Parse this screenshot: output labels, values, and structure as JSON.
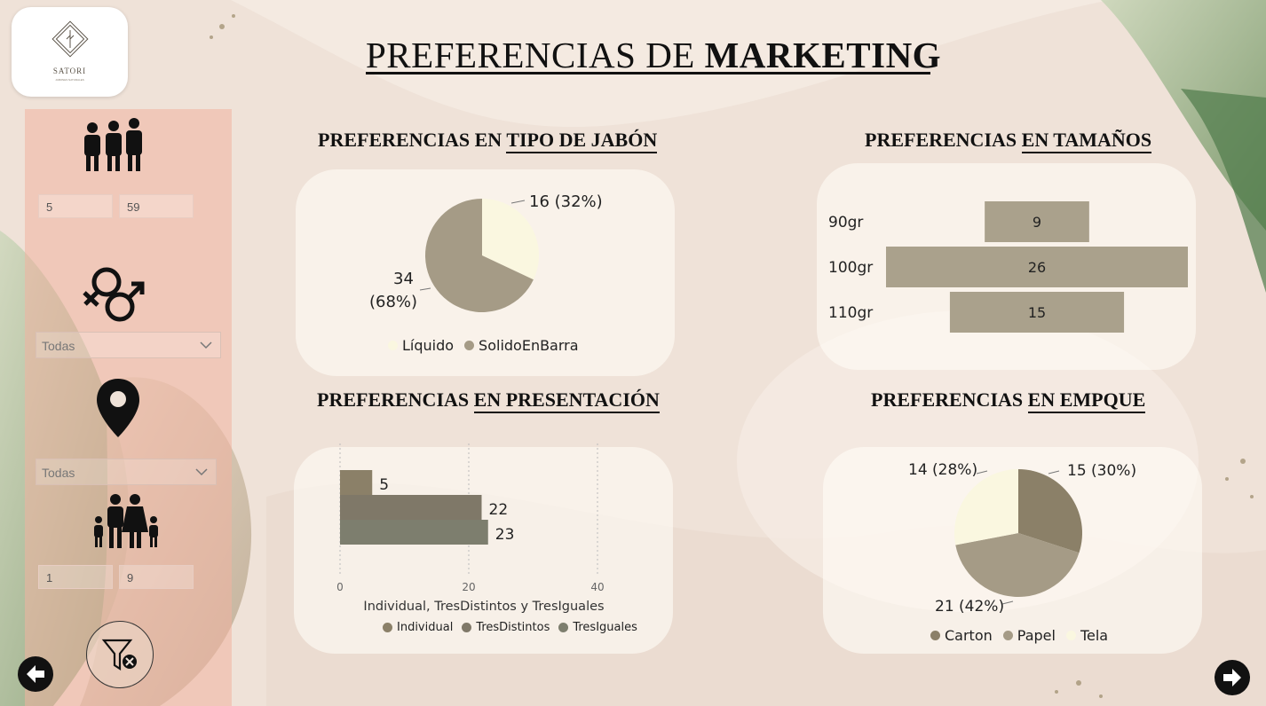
{
  "header": {
    "title_regular": "PREFERENCIAS DE ",
    "title_bold": "MARKETING",
    "logo_text": "SATORI",
    "logo_subtext": "JABONES NATURALES"
  },
  "sidebar": {
    "age_icon": "people-group-icon",
    "age_min": "5",
    "age_max": "59",
    "gender_icon": "gender-symbol-icon",
    "gender_value": "Todas",
    "location_icon": "map-pin-icon",
    "location_value": "Todas",
    "family_icon": "family-icon",
    "family_min": "1",
    "family_max": "9",
    "clear_filters_icon": "filter-clear-icon"
  },
  "navigation": {
    "back_icon": "arrow-left-icon",
    "next_icon": "arrow-right-icon"
  },
  "sections": {
    "soap_type": {
      "title_plain": "PREFERENCIAS EN ",
      "title_underlined": "TIPO DE JABÓN"
    },
    "sizes": {
      "title_plain": "PREFERENCIAS ",
      "title_underlined": "EN TAMAÑOS"
    },
    "presentation": {
      "title_plain": "PREFERENCIAS ",
      "title_underlined": "EN PRESENTACIÓN"
    },
    "packaging": {
      "title_plain": "PREFERENCIAS ",
      "title_underlined": "EN EMPQUE"
    }
  },
  "colors": {
    "pie_light": "#faf7e0",
    "pie_tan": "#a59b86",
    "pie_dark": "#8b8068",
    "bar_tan": "#aaa18c",
    "bar_individual": "#8b8068",
    "bar_tresdistintos": "#7f7868",
    "bar_tresiguales": "#7d7e6e"
  },
  "chart_data": [
    {
      "id": "soap_type",
      "type": "pie",
      "slices": [
        {
          "name": "Líquido",
          "value": 16,
          "label": "16 (32%)"
        },
        {
          "name": "SolidoEnBarra",
          "value": 34,
          "label_line1": "34",
          "label_line2": "(68%)"
        }
      ],
      "legend": [
        "Líquido",
        "SolidoEnBarra"
      ]
    },
    {
      "id": "sizes",
      "type": "bar",
      "orientation": "horizontal-centered",
      "categories": [
        "90gr",
        "100gr",
        "110gr"
      ],
      "values": [
        9,
        26,
        15
      ],
      "labels": [
        "9",
        "26",
        "15"
      ]
    },
    {
      "id": "presentation",
      "type": "bar",
      "orientation": "horizontal",
      "series": [
        {
          "name": "Individual",
          "value": 5,
          "label": "5"
        },
        {
          "name": "TresDistintos",
          "value": 22,
          "label": "22"
        },
        {
          "name": "TresIguales",
          "value": 23,
          "label": "23"
        }
      ],
      "xlim": [
        0,
        40
      ],
      "xticks": [
        "0",
        "20",
        "40"
      ],
      "xlabel": "Individual, TresDistintos y TresIguales",
      "legend": [
        "Individual",
        "TresDistintos",
        "TresIguales"
      ],
      "grid": true
    },
    {
      "id": "packaging",
      "type": "pie",
      "slices": [
        {
          "name": "Carton",
          "value": 15,
          "label": "15 (30%)"
        },
        {
          "name": "Papel",
          "value": 21,
          "label": "21 (42%)"
        },
        {
          "name": "Tela",
          "value": 14,
          "label": "14 (28%)"
        }
      ],
      "legend": [
        "Carton",
        "Papel",
        "Tela"
      ]
    }
  ]
}
